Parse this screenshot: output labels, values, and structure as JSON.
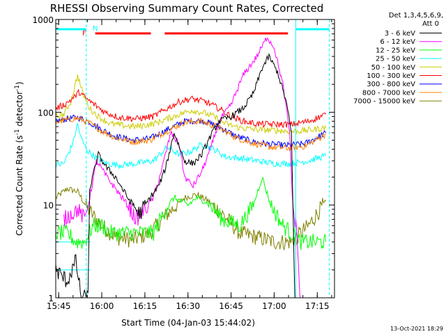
{
  "chart_data": {
    "type": "line",
    "title": "RHESSI Observing Summary Count Rates, Corrected",
    "xlabel": "Start Time (04-Jan-03 15:44:02)",
    "ylabel_prefix": "Corrected Count Rate (s",
    "ylabel_sup1": "-1",
    "ylabel_middle": " detector",
    "ylabel_sup2": "-1",
    "ylabel_suffix": ")",
    "y_scale": "log",
    "ylim": [
      1,
      1000
    ],
    "xlim_minutes": [
      15.733,
      17.35
    ],
    "x_ticks": [
      {
        "label": "15:45",
        "hours": 15.75
      },
      {
        "label": "16:00",
        "hours": 16.0
      },
      {
        "label": "16:15",
        "hours": 16.25
      },
      {
        "label": "16:30",
        "hours": 16.5
      },
      {
        "label": "16:45",
        "hours": 16.75
      },
      {
        "label": "17:00",
        "hours": 17.0
      },
      {
        "label": "17:15",
        "hours": 17.25
      }
    ],
    "y_ticks": [
      {
        "label": "1",
        "value": 1
      },
      {
        "label": "10",
        "value": 10
      },
      {
        "label": "100",
        "value": 100
      },
      {
        "label": "1000",
        "value": 1000
      }
    ],
    "legend_header": [
      "Det 1,3,4,5,6,9,",
      "Att 0"
    ],
    "legend_placement": "right",
    "series": [
      {
        "name": "3 - 6 keV",
        "color": "#000000",
        "points": [
          [
            15.733,
            2.0
          ],
          [
            15.8,
            1.5
          ],
          [
            15.85,
            2.5
          ],
          [
            15.88,
            1.0
          ],
          [
            15.92,
            1.0
          ],
          [
            15.93,
            15
          ],
          [
            15.98,
            35
          ],
          [
            16.03,
            25
          ],
          [
            16.08,
            20
          ],
          [
            16.15,
            12
          ],
          [
            16.22,
            8
          ],
          [
            16.28,
            12
          ],
          [
            16.33,
            16
          ],
          [
            16.37,
            25
          ],
          [
            16.42,
            60
          ],
          [
            16.48,
            30
          ],
          [
            16.53,
            28
          ],
          [
            16.58,
            35
          ],
          [
            16.63,
            55
          ],
          [
            16.68,
            80
          ],
          [
            16.75,
            90
          ],
          [
            16.82,
            110
          ],
          [
            16.88,
            160
          ],
          [
            16.93,
            300
          ],
          [
            16.97,
            400
          ],
          [
            17.02,
            270
          ],
          [
            17.07,
            130
          ],
          [
            17.1,
            60
          ],
          [
            17.12,
            1.0
          ]
        ]
      },
      {
        "name": "6 - 12 keV",
        "color": "#ff00ff",
        "points": [
          [
            15.78,
            7
          ],
          [
            15.82,
            8
          ],
          [
            15.86,
            9
          ],
          [
            15.9,
            7
          ],
          [
            15.93,
            12
          ],
          [
            15.97,
            30
          ],
          [
            16.03,
            20
          ],
          [
            16.08,
            15
          ],
          [
            16.15,
            10
          ],
          [
            16.2,
            7
          ],
          [
            16.25,
            9
          ],
          [
            16.3,
            12
          ],
          [
            16.35,
            25
          ],
          [
            16.4,
            60
          ],
          [
            16.45,
            45
          ],
          [
            16.48,
            20
          ],
          [
            16.53,
            16
          ],
          [
            16.58,
            23
          ],
          [
            16.63,
            40
          ],
          [
            16.68,
            80
          ],
          [
            16.75,
            120
          ],
          [
            16.82,
            250
          ],
          [
            16.9,
            400
          ],
          [
            16.96,
            650
          ],
          [
            17.0,
            500
          ],
          [
            17.05,
            200
          ],
          [
            17.09,
            60
          ],
          [
            17.11,
            8
          ],
          [
            17.13,
            6
          ],
          [
            17.15,
            1.0
          ]
        ]
      },
      {
        "name": "12 - 25 keV",
        "color": "#00ff00",
        "points": [
          [
            15.733,
            5
          ],
          [
            15.8,
            5
          ],
          [
            15.85,
            4
          ],
          [
            15.9,
            4
          ],
          [
            15.95,
            6
          ],
          [
            16.0,
            6
          ],
          [
            16.05,
            5
          ],
          [
            16.15,
            5
          ],
          [
            16.25,
            5
          ],
          [
            16.3,
            5
          ],
          [
            16.37,
            9
          ],
          [
            16.42,
            12
          ],
          [
            16.5,
            10
          ],
          [
            16.55,
            12
          ],
          [
            16.6,
            11
          ],
          [
            16.65,
            9
          ],
          [
            16.7,
            7
          ],
          [
            16.8,
            6
          ],
          [
            16.88,
            10
          ],
          [
            16.93,
            20
          ],
          [
            16.98,
            10
          ],
          [
            17.05,
            6
          ],
          [
            17.1,
            5
          ],
          [
            17.15,
            4
          ],
          [
            17.2,
            4
          ],
          [
            17.25,
            4
          ],
          [
            17.3,
            4
          ]
        ]
      },
      {
        "name": "25 - 50 keV",
        "color": "#00ffff",
        "points": [
          [
            15.733,
            27
          ],
          [
            15.78,
            28
          ],
          [
            15.83,
            45
          ],
          [
            15.86,
            75
          ],
          [
            15.88,
            52
          ],
          [
            15.92,
            38
          ],
          [
            15.97,
            32
          ],
          [
            16.03,
            28
          ],
          [
            16.1,
            27
          ],
          [
            16.2,
            28
          ],
          [
            16.3,
            30
          ],
          [
            16.38,
            42
          ],
          [
            16.45,
            35
          ],
          [
            16.52,
            38
          ],
          [
            16.58,
            45
          ],
          [
            16.65,
            40
          ],
          [
            16.72,
            33
          ],
          [
            16.8,
            32
          ],
          [
            16.9,
            30
          ],
          [
            17.0,
            28
          ],
          [
            17.1,
            28
          ],
          [
            17.2,
            30
          ],
          [
            17.3,
            34
          ]
        ]
      },
      {
        "name": "50 - 100 keV",
        "color": "#cccc00",
        "points": [
          [
            15.733,
            90
          ],
          [
            15.78,
            95
          ],
          [
            15.82,
            130
          ],
          [
            15.86,
            250
          ],
          [
            15.89,
            160
          ],
          [
            15.93,
            110
          ],
          [
            15.98,
            90
          ],
          [
            16.05,
            75
          ],
          [
            16.12,
            72
          ],
          [
            16.2,
            70
          ],
          [
            16.3,
            75
          ],
          [
            16.38,
            85
          ],
          [
            16.45,
            95
          ],
          [
            16.52,
            105
          ],
          [
            16.58,
            100
          ],
          [
            16.65,
            90
          ],
          [
            16.72,
            75
          ],
          [
            16.8,
            68
          ],
          [
            16.9,
            65
          ],
          [
            17.0,
            64
          ],
          [
            17.1,
            62
          ],
          [
            17.2,
            64
          ],
          [
            17.3,
            68
          ]
        ]
      },
      {
        "name": "100 - 300 keV",
        "color": "#ff0000",
        "points": [
          [
            15.733,
            110
          ],
          [
            15.78,
            120
          ],
          [
            15.83,
            140
          ],
          [
            15.87,
            165
          ],
          [
            15.91,
            140
          ],
          [
            15.96,
            120
          ],
          [
            16.02,
            100
          ],
          [
            16.1,
            88
          ],
          [
            16.2,
            85
          ],
          [
            16.3,
            90
          ],
          [
            16.38,
            110
          ],
          [
            16.45,
            130
          ],
          [
            16.52,
            140
          ],
          [
            16.6,
            130
          ],
          [
            16.68,
            110
          ],
          [
            16.75,
            90
          ],
          [
            16.82,
            80
          ],
          [
            16.9,
            75
          ],
          [
            17.0,
            74
          ],
          [
            17.1,
            74
          ],
          [
            17.2,
            80
          ],
          [
            17.3,
            95
          ]
        ]
      },
      {
        "name": "300 - 800 keV",
        "color": "#0000ff",
        "points": [
          [
            15.733,
            80
          ],
          [
            15.8,
            85
          ],
          [
            15.86,
            88
          ],
          [
            15.92,
            80
          ],
          [
            16.0,
            65
          ],
          [
            16.08,
            55
          ],
          [
            16.18,
            50
          ],
          [
            16.28,
            52
          ],
          [
            16.38,
            65
          ],
          [
            16.48,
            80
          ],
          [
            16.58,
            82
          ],
          [
            16.68,
            70
          ],
          [
            16.78,
            55
          ],
          [
            16.88,
            48
          ],
          [
            16.98,
            45
          ],
          [
            17.08,
            44
          ],
          [
            17.18,
            46
          ],
          [
            17.3,
            60
          ]
        ]
      },
      {
        "name": "800 - 7000 keV",
        "color": "#ff8000",
        "points": [
          [
            15.733,
            78
          ],
          [
            15.8,
            83
          ],
          [
            15.86,
            86
          ],
          [
            15.92,
            78
          ],
          [
            16.0,
            63
          ],
          [
            16.08,
            53
          ],
          [
            16.18,
            48
          ],
          [
            16.28,
            50
          ],
          [
            16.38,
            63
          ],
          [
            16.48,
            78
          ],
          [
            16.58,
            80
          ],
          [
            16.68,
            68
          ],
          [
            16.78,
            53
          ],
          [
            16.88,
            46
          ],
          [
            16.98,
            42
          ],
          [
            17.08,
            41
          ],
          [
            17.18,
            43
          ],
          [
            17.3,
            58
          ]
        ]
      },
      {
        "name": "7000 - 15000 keV",
        "color": "#808000",
        "points": [
          [
            15.733,
            12
          ],
          [
            15.8,
            15
          ],
          [
            15.86,
            14
          ],
          [
            15.92,
            9
          ],
          [
            16.0,
            6
          ],
          [
            16.08,
            4.5
          ],
          [
            16.18,
            4.2
          ],
          [
            16.28,
            5
          ],
          [
            16.38,
            8
          ],
          [
            16.48,
            12
          ],
          [
            16.55,
            13
          ],
          [
            16.62,
            11
          ],
          [
            16.7,
            8
          ],
          [
            16.8,
            5
          ],
          [
            16.9,
            4.5
          ],
          [
            17.0,
            4
          ],
          [
            17.1,
            4
          ],
          [
            17.2,
            6
          ],
          [
            17.3,
            11
          ]
        ]
      }
    ],
    "flags": {
      "night_label": "N",
      "flare_label": "F",
      "night_color": "#00ffff",
      "flare_color": "#ff0000",
      "night_segments": [
        [
          15.733,
          15.91
        ],
        [
          17.125,
          17.32
        ]
      ],
      "flare_segments": [
        [
          15.962,
          16.285
        ],
        [
          16.365,
          17.08
        ]
      ]
    },
    "vlines": [
      {
        "hours": 15.91,
        "style": "dashed",
        "color": "#00ffff"
      },
      {
        "hours": 17.125,
        "style": "solid",
        "color": "#00ffff"
      },
      {
        "hours": 17.32,
        "style": "dashed",
        "color": "#00ffff"
      }
    ],
    "hlines_cyan": [
      4,
      2
    ]
  },
  "footer": {
    "timestamp": "13-Oct-2021 18:29"
  }
}
